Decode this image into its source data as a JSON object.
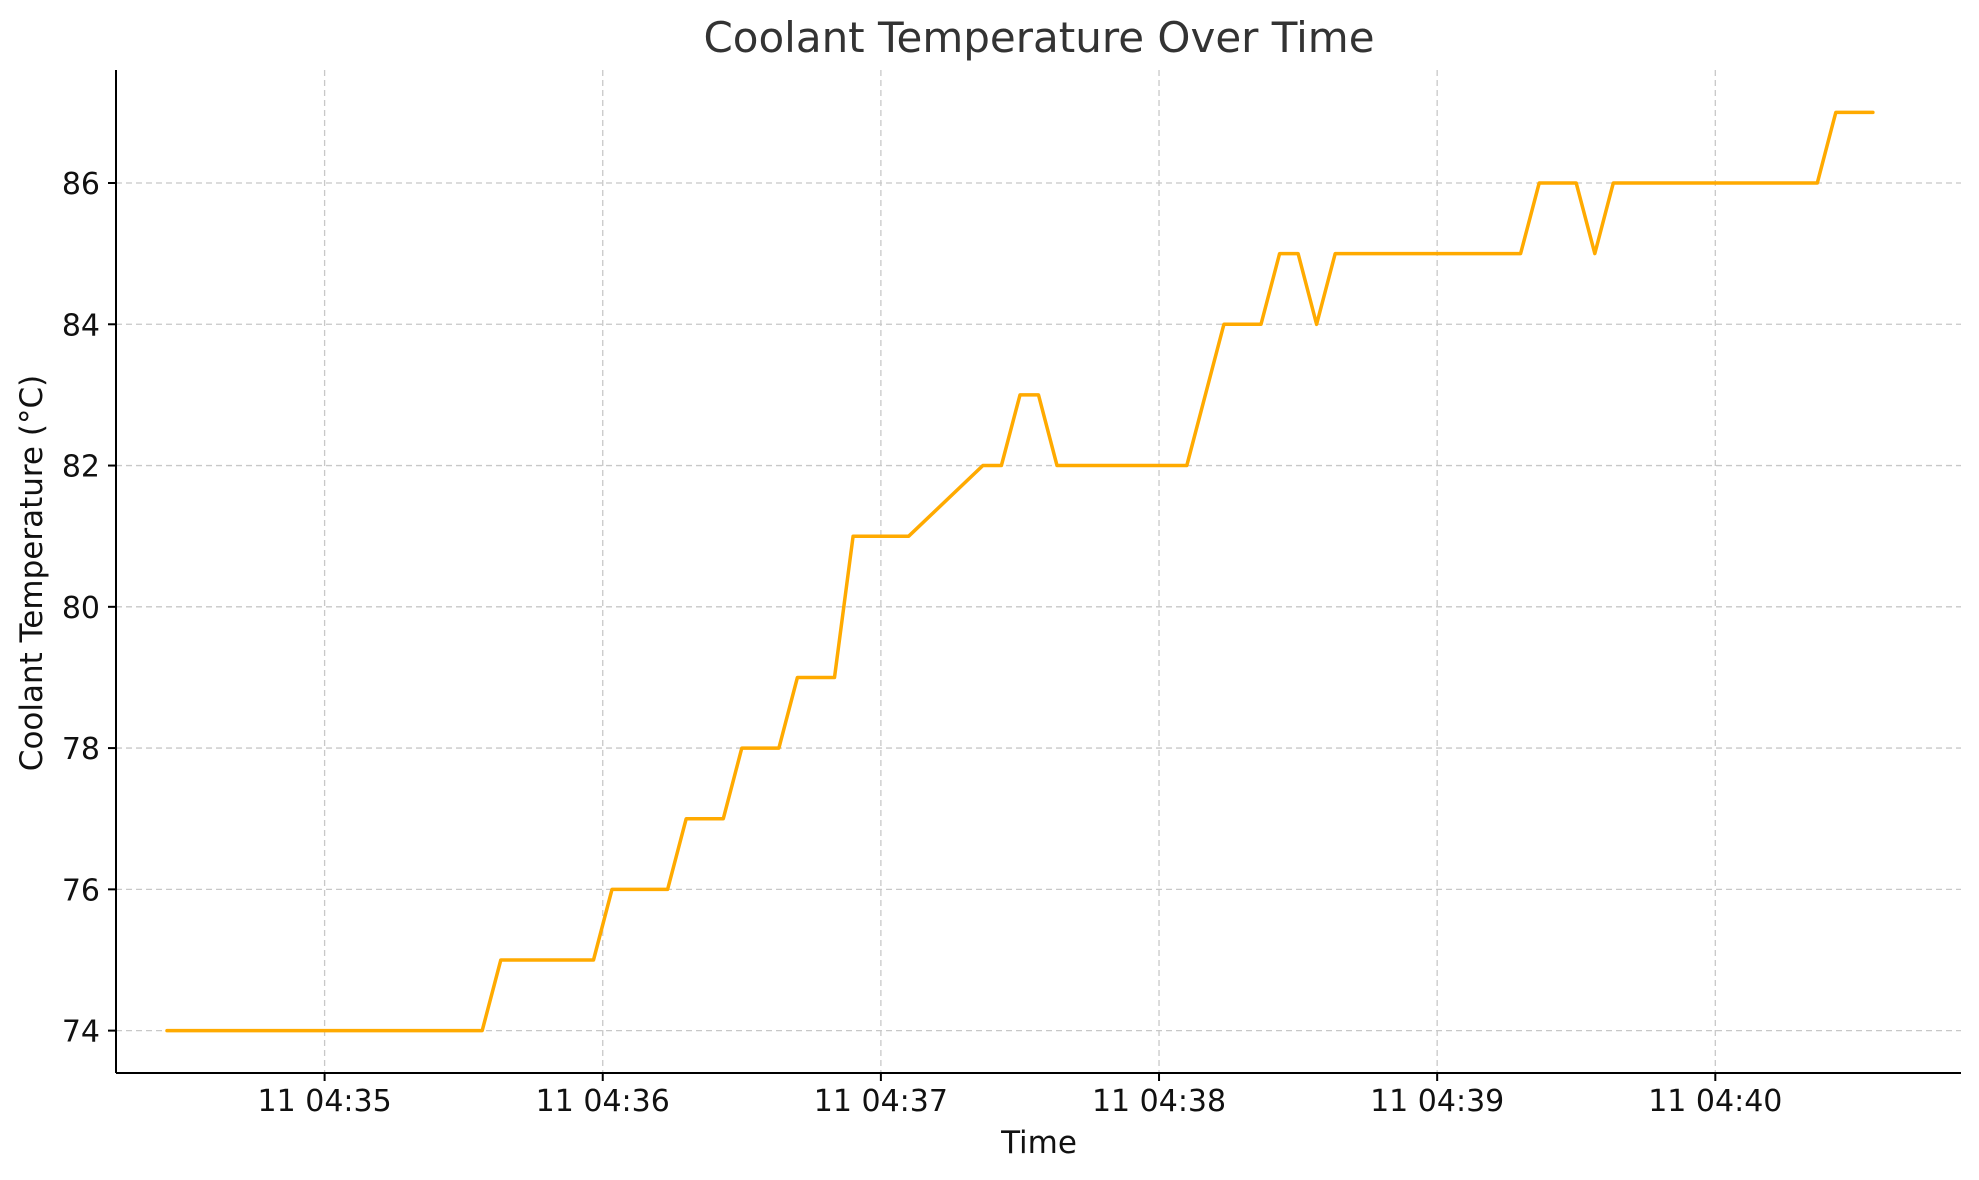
{
  "chart_data": {
    "type": "line",
    "title": "Coolant Temperature Over Time",
    "xlabel": "Time",
    "ylabel": "Coolant Temperature (°C)",
    "grid": true,
    "colors": {
      "series": "#FFAA00"
    },
    "xlim": [
      "04:34:15",
      "04:40:53"
    ],
    "ylim": [
      73.4,
      87.6
    ],
    "x_ticks": [
      {
        "label": "11 04:35",
        "t": "04:35:00"
      },
      {
        "label": "11 04:36",
        "t": "04:36:00"
      },
      {
        "label": "11 04:37",
        "t": "04:37:00"
      },
      {
        "label": "11 04:38",
        "t": "04:38:00"
      },
      {
        "label": "11 04:39",
        "t": "04:39:00"
      },
      {
        "label": "11 04:40",
        "t": "04:40:00"
      }
    ],
    "y_ticks": [
      74,
      76,
      78,
      80,
      82,
      84,
      86
    ],
    "series": [
      {
        "x": [
          "04:34:26",
          "04:35:34",
          "04:35:38",
          "04:35:58",
          "04:36:02",
          "04:36:14",
          "04:36:18",
          "04:36:26",
          "04:36:30",
          "04:36:38",
          "04:36:42",
          "04:36:50",
          "04:36:54",
          "04:37:06",
          "04:37:22",
          "04:37:26",
          "04:37:30",
          "04:37:34",
          "04:37:38",
          "04:38:06",
          "04:38:14",
          "04:38:22",
          "04:38:26",
          "04:38:30",
          "04:38:34",
          "04:38:38",
          "04:39:18",
          "04:39:22",
          "04:39:30",
          "04:39:34",
          "04:39:38",
          "04:40:22",
          "04:40:26",
          "04:40:34"
        ],
        "values": [
          74,
          74,
          75,
          75,
          76,
          76,
          77,
          77,
          78,
          78,
          79,
          79,
          81,
          81,
          82,
          82,
          83,
          83,
          82,
          82,
          84,
          84,
          85,
          85,
          84,
          85,
          85,
          86,
          86,
          85,
          86,
          86,
          87,
          87
        ]
      }
    ]
  }
}
